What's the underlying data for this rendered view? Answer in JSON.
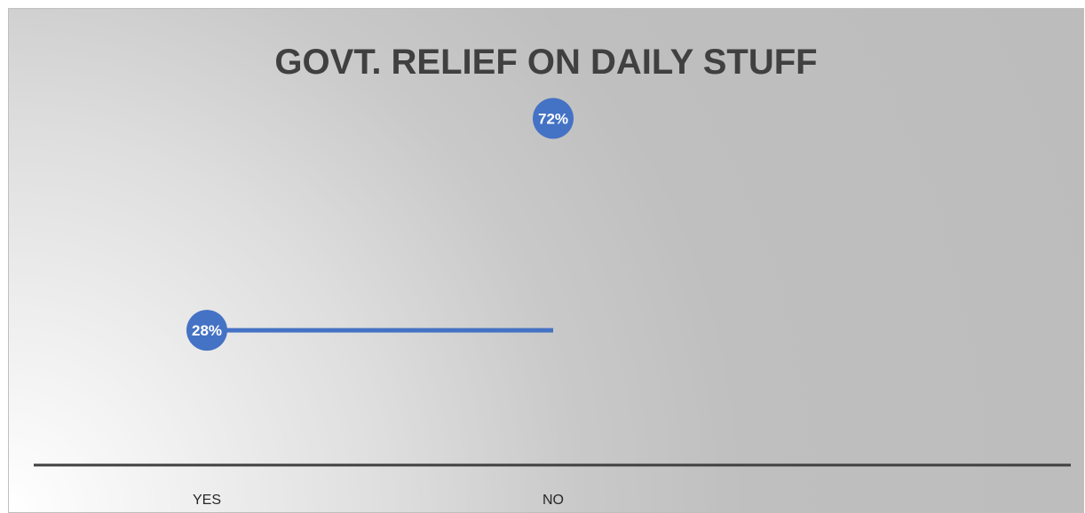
{
  "chart_data": {
    "type": "line",
    "title": "GOVT. RELIEF ON DAILY STUFF",
    "categories": [
      "YES",
      "NO"
    ],
    "values": [
      28,
      72
    ],
    "data_labels": [
      "28%",
      "72%"
    ],
    "ylim": [
      0,
      80
    ],
    "grid": false,
    "legend": "none",
    "colors": {
      "series": "#4472c4",
      "axis": "#404040",
      "title": "#404040",
      "label_text": "#ffffff"
    }
  }
}
